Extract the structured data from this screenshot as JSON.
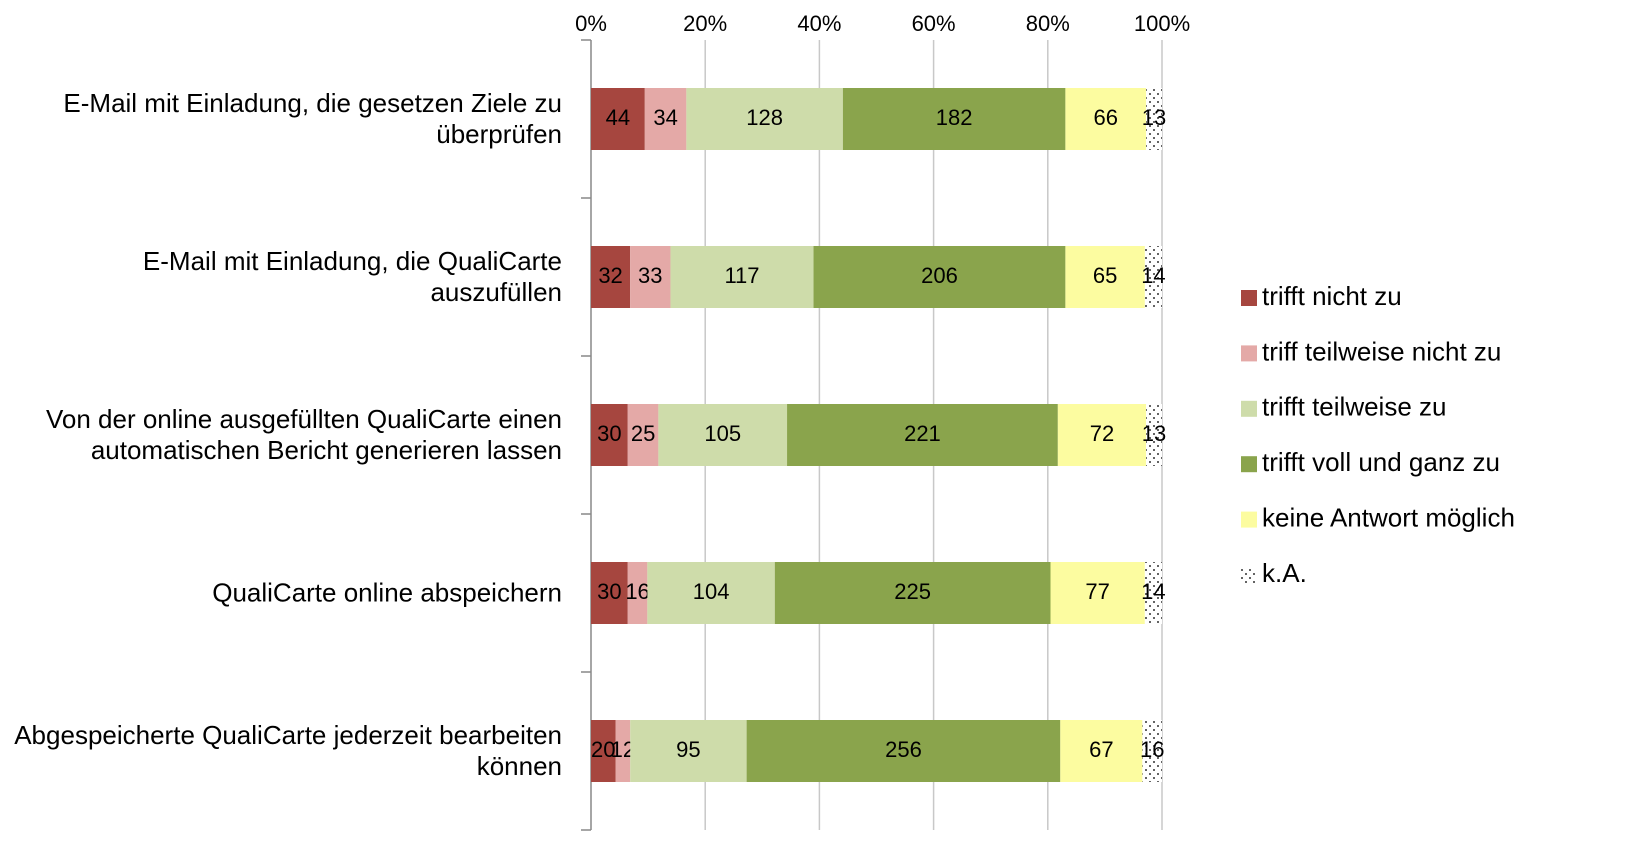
{
  "chart_data": {
    "type": "bar",
    "orientation": "horizontal",
    "stacked": "percent",
    "categories": [
      "E-Mail mit Einladung, die gesetzen Ziele zu überprüfen",
      "E-Mail mit Einladung, die QualiCarte auszufüllen",
      "Von der online ausgefüllten QualiCarte einen automatischen Bericht generieren lassen",
      "QualiCarte online abspeichern",
      "Abgespeicherte QualiCarte jederzeit bearbeiten können"
    ],
    "series": [
      {
        "name": "trifft nicht zu",
        "color": "#a6463f",
        "values": [
          44,
          32,
          30,
          30,
          20
        ]
      },
      {
        "name": "triff teilweise nicht zu",
        "color": "#e4a9a7",
        "values": [
          34,
          33,
          25,
          16,
          12
        ]
      },
      {
        "name": "trifft teilweise zu",
        "color": "#cedcaa",
        "values": [
          128,
          117,
          105,
          104,
          95
        ]
      },
      {
        "name": "trifft voll und ganz zu",
        "color": "#8aa44c",
        "values": [
          182,
          206,
          221,
          225,
          256
        ]
      },
      {
        "name": "keine Antwort möglich",
        "color": "#fcfca0",
        "values": [
          66,
          65,
          72,
          77,
          67
        ]
      },
      {
        "name": "k.A.",
        "color": "pattern",
        "values": [
          13,
          14,
          13,
          14,
          16
        ]
      }
    ],
    "xlim": [
      0,
      100
    ],
    "xticks": [
      {
        "value": 0,
        "label": "0%"
      },
      {
        "value": 20,
        "label": "20%"
      },
      {
        "value": 40,
        "label": "40%"
      },
      {
        "value": 60,
        "label": "60%"
      },
      {
        "value": 80,
        "label": "80%"
      },
      {
        "value": 100,
        "label": "100%"
      }
    ],
    "grid": true,
    "legend": "right"
  }
}
